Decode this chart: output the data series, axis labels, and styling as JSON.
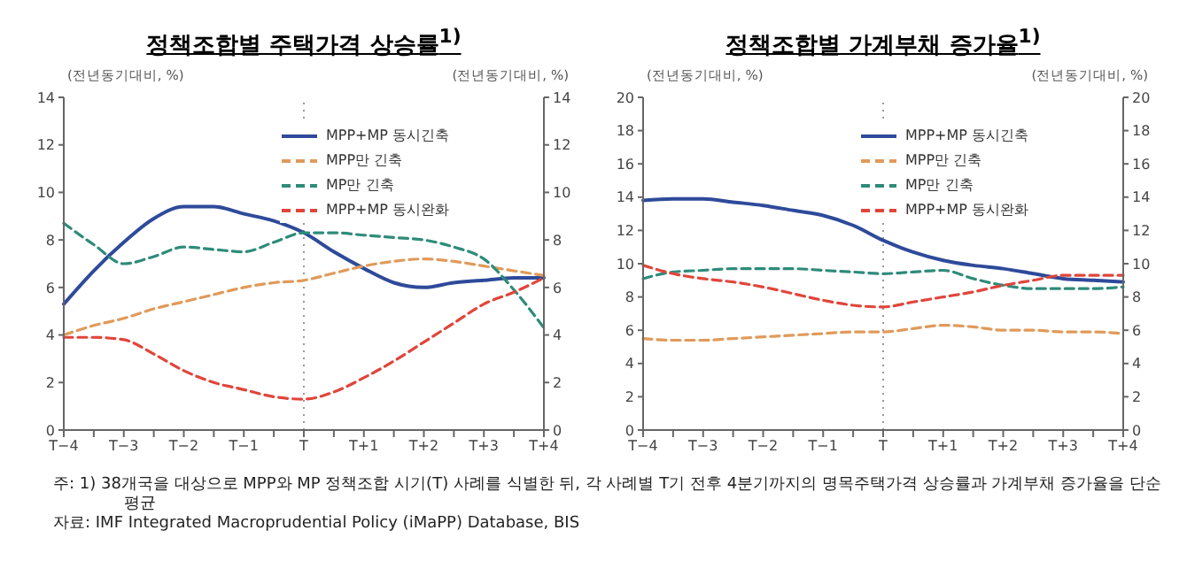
{
  "chart_data": [
    {
      "type": "line",
      "title": "정책조합별 주택가격 상승률$^{1)}$",
      "ylabel": "(전년동기대비, %)",
      "y2label": "(전년동기대비, %)",
      "categories": [
        "T−4",
        null,
        "T−3",
        null,
        "T−2",
        null,
        "T−1",
        null,
        "T",
        null,
        "T+1",
        null,
        "T+2",
        null,
        "T+3",
        null,
        "T+4"
      ],
      "ylim": [
        0,
        14
      ],
      "yticks": [
        0,
        2,
        4,
        6,
        8,
        10,
        12,
        14
      ],
      "y2lim": [
        0,
        14
      ],
      "y2ticks": [
        0,
        2,
        4,
        6,
        8,
        10,
        12,
        14
      ],
      "legend": "top right",
      "marker": "none",
      "series": [
        {
          "name": "MPP+MP 동시긴축",
          "color": "#2e4a9a",
          "line_style": "solid",
          "values": [
            5.3,
            6.7,
            7.9,
            8.9,
            9.4,
            9.4,
            9.1,
            8.8,
            8.3,
            7.5,
            6.8,
            6.2,
            6.0,
            6.2,
            6.3,
            6.4,
            6.4
          ]
        },
        {
          "name": "MPP만 긴축",
          "color": "#e09a5a",
          "line_style": "dashed",
          "values": [
            4.0,
            4.4,
            4.7,
            5.1,
            5.4,
            5.7,
            6.0,
            6.2,
            6.3,
            6.6,
            6.9,
            7.1,
            7.2,
            7.1,
            6.9,
            6.7,
            6.5
          ]
        },
        {
          "name": "MP만 긴축",
          "color": "#2e8b7a",
          "line_style": "dashed",
          "values": [
            8.7,
            7.8,
            7.0,
            7.3,
            7.7,
            7.6,
            7.5,
            7.9,
            8.3,
            8.3,
            8.2,
            8.1,
            8.0,
            7.7,
            7.2,
            5.9,
            4.3
          ]
        },
        {
          "name": "MPP+MP 동시완화",
          "color": "#e0453a",
          "line_style": "dashed",
          "values": [
            3.9,
            3.9,
            3.8,
            3.2,
            2.5,
            2.0,
            1.7,
            1.4,
            1.3,
            1.6,
            2.2,
            2.9,
            3.7,
            4.5,
            5.3,
            5.8,
            6.4
          ]
        }
      ],
      "ref_lines": [
        {
          "axis": "x",
          "value": "T",
          "color": "#999999",
          "line_style": "dotted"
        }
      ],
      "annotations": [
        "주: 1) 38개국을 대상으로 MPP와 MP 정책조합 시기(T) 사례를 식별한 뒤, 각 사례별 T기 전후 4분기까지의 명목주택가격 상승률과 가계부채 증가율을 단순평균",
        "자료: IMF Integrated Macroprudential Policy (iMaPP) Database, BIS"
      ]
    },
    {
      "type": "line",
      "title": "정책조합별 가계부채 증가율$^{1)}$",
      "ylabel": "(전년동기대비, %)",
      "y2label": "(전년동기대비, %)",
      "categories": [
        "T−4",
        null,
        "T−3",
        null,
        "T−2",
        null,
        "T−1",
        null,
        "T",
        null,
        "T+1",
        null,
        "T+2",
        null,
        "T+3",
        null,
        "T+4"
      ],
      "ylim": [
        0,
        20
      ],
      "yticks": [
        0,
        2,
        4,
        6,
        8,
        10,
        12,
        14,
        16,
        18,
        20
      ],
      "y2lim": [
        0,
        20
      ],
      "y2ticks": [
        0,
        2,
        4,
        6,
        8,
        10,
        12,
        14,
        16,
        18,
        20
      ],
      "legend": "top right",
      "marker": "none",
      "series": [
        {
          "name": "MPP+MP 동시긴축",
          "color": "#2e4a9a",
          "line_style": "solid",
          "values": [
            13.8,
            13.9,
            13.9,
            13.7,
            13.5,
            13.2,
            12.9,
            12.3,
            11.4,
            10.7,
            10.2,
            9.9,
            9.7,
            9.4,
            9.1,
            9.0,
            8.9
          ]
        },
        {
          "name": "MPP만 긴축",
          "color": "#e09a5a",
          "line_style": "dashed",
          "values": [
            5.5,
            5.4,
            5.4,
            5.5,
            5.6,
            5.7,
            5.8,
            5.9,
            5.9,
            6.1,
            6.3,
            6.2,
            6.0,
            6.0,
            5.9,
            5.9,
            5.8
          ]
        },
        {
          "name": "MP만 긴축",
          "color": "#2e8b7a",
          "line_style": "dashed",
          "values": [
            9.1,
            9.5,
            9.6,
            9.7,
            9.7,
            9.7,
            9.6,
            9.5,
            9.4,
            9.5,
            9.6,
            9.1,
            8.7,
            8.5,
            8.5,
            8.5,
            8.6
          ]
        },
        {
          "name": "MPP+MP 동시완화",
          "color": "#e0453a",
          "line_style": "dashed",
          "values": [
            9.9,
            9.4,
            9.1,
            8.9,
            8.6,
            8.2,
            7.8,
            7.5,
            7.4,
            7.7,
            8.0,
            8.3,
            8.7,
            9.0,
            9.3,
            9.3,
            9.3
          ]
        }
      ],
      "ref_lines": [
        {
          "axis": "x",
          "value": "T",
          "color": "#999999",
          "line_style": "dotted"
        }
      ]
    }
  ]
}
